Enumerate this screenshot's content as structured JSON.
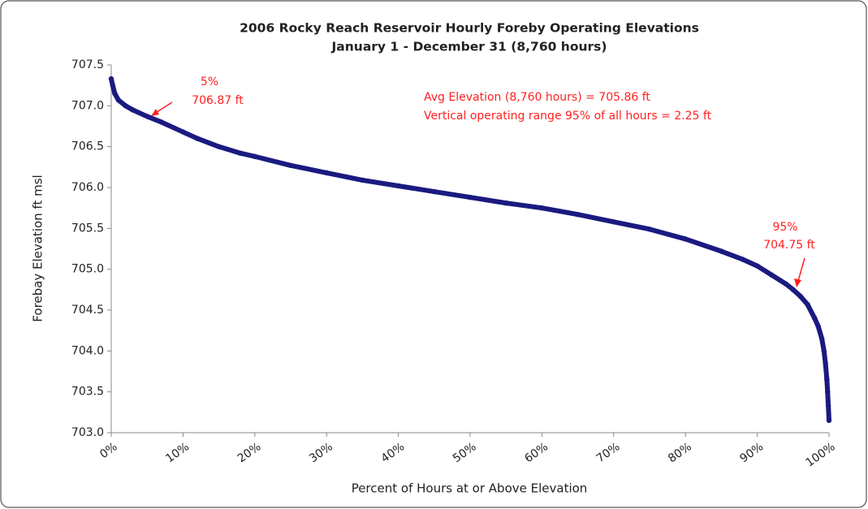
{
  "chart_data": {
    "type": "scatter",
    "title": "2006 Rocky Reach Reservoir Hourly Foreby Operating Elevations",
    "subtitle": "January 1 - December 31 (8,760 hours)",
    "x_label": "Percent of Hours at or Above Elevation",
    "y_label": "Forebay Elevation ft msl",
    "annotations": [
      "5%",
      "706.87 ft",
      "Avg Elevation (8,760 hours) = 705.86 ft",
      "Vertical operating range 95% of all hours = 2.25 ft",
      "95%",
      "704.75 ft"
    ],
    "color": "#1a1a80",
    "annotation_color": "#ff2020",
    "xlim": [
      0,
      100
    ],
    "ylim": [
      703,
      707.5
    ],
    "xticks": [
      {
        "value": 0,
        "label": "0%"
      },
      {
        "value": 10,
        "label": "10%"
      },
      {
        "value": 20,
        "label": "20%"
      },
      {
        "value": 30,
        "label": "30%"
      },
      {
        "value": 40,
        "label": "40%"
      },
      {
        "value": 50,
        "label": "50%"
      },
      {
        "value": 60,
        "label": "60%"
      },
      {
        "value": 70,
        "label": "70%"
      },
      {
        "value": 80,
        "label": "80%"
      },
      {
        "value": 90,
        "label": "90%"
      },
      {
        "value": 100,
        "label": "100%"
      }
    ],
    "yticks": [
      {
        "value": 703,
        "label": "703.0"
      },
      703.5,
      {
        "value": 704,
        "label": "704.0"
      },
      704.5,
      {
        "value": 705,
        "label": "705.0"
      },
      705.5,
      {
        "value": 706,
        "label": "706.0"
      },
      706.5,
      {
        "value": 707,
        "label": "707.0"
      },
      707.5
    ],
    "grid": false,
    "x": [
      0,
      0.2,
      0.5,
      1,
      2,
      3,
      5,
      7,
      10,
      12,
      15,
      18,
      20,
      25,
      30,
      35,
      40,
      45,
      50,
      55,
      60,
      65,
      70,
      75,
      80,
      85,
      88,
      90,
      92,
      94,
      95,
      96,
      97,
      98,
      98.5,
      99,
      99.3,
      99.5,
      99.7,
      99.8,
      99.9,
      100
    ],
    "values": [
      707.33,
      707.25,
      707.15,
      707.07,
      707.0,
      706.95,
      706.87,
      706.8,
      706.68,
      706.6,
      706.5,
      706.42,
      706.38,
      706.27,
      706.18,
      706.09,
      706.02,
      705.95,
      705.88,
      705.81,
      705.75,
      705.67,
      705.58,
      705.49,
      705.37,
      705.22,
      705.12,
      705.04,
      704.93,
      704.82,
      704.75,
      704.67,
      704.57,
      704.4,
      704.3,
      704.15,
      704.0,
      703.85,
      703.65,
      703.5,
      703.33,
      703.15
    ]
  }
}
